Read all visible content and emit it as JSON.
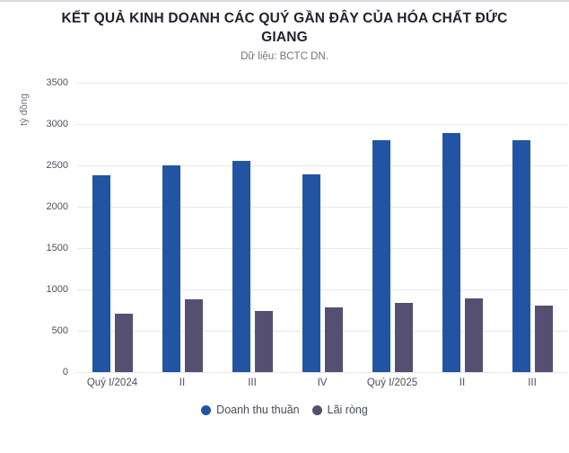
{
  "header": {
    "title": "KẾT QUẢ KINH DOANH CÁC QUÝ GẦN ĐÂY CỦA HÓA CHẤT ĐỨC GIANG",
    "subtitle": "Dữ liệu: BCTC DN."
  },
  "chart_data": {
    "type": "bar",
    "title": "KẾT QUẢ KINH DOANH CÁC QUÝ GẦN ĐÂY CỦA HÓA CHẤT ĐỨC GIANG",
    "subtitle": "Dữ liệu: BCTC DN.",
    "unit": "tỷ đồng",
    "xlabel": "",
    "ylabel": "tỷ đồng",
    "ylim": [
      0,
      3500
    ],
    "ytick_step": 500,
    "yticks": [
      0,
      500,
      1000,
      1500,
      2000,
      2500,
      3000,
      3500
    ],
    "grid": true,
    "legend_position": "bottom",
    "categories": [
      "Quý I/2024",
      "II",
      "III",
      "IV",
      "Quý I/2025",
      "II",
      "III"
    ],
    "series": [
      {
        "name": "Doanh thu thuần",
        "color": "#2254a4",
        "values": [
          2385,
          2505,
          2560,
          2395,
          2805,
          2890,
          2805
        ]
      },
      {
        "name": "Lãi ròng",
        "color": "#555071",
        "values": [
          705,
          880,
          740,
          790,
          835,
          890,
          805
        ]
      }
    ]
  },
  "colors": {
    "background": "#ffffff",
    "top_border": "#d9dae0",
    "gridline": "#e7e7ec",
    "title_text": "#20222e",
    "subtitle_text": "#6f7480",
    "tick_text": "#4c4f5c",
    "revenue_bar": "#2254a4",
    "profit_bar": "#555071"
  }
}
